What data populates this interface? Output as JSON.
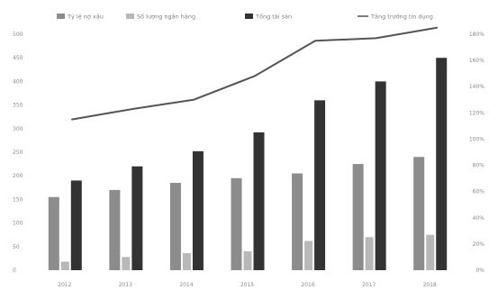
{
  "chart_data": {
    "type": "bar",
    "title": "",
    "xlabel": "",
    "ylabel": "",
    "categories": [
      "2012",
      "2013",
      "2014",
      "2015",
      "2016",
      "2017",
      "2018"
    ],
    "ylim_left": [
      0,
      500
    ],
    "ylim_right": [
      0,
      180
    ],
    "left_ticks": [
      "0",
      "50",
      "100",
      "150",
      "200",
      "250",
      "300",
      "350",
      "400",
      "450",
      "500"
    ],
    "right_ticks": [
      "0%",
      "20%",
      "40%",
      "60%",
      "80%",
      "100%",
      "120%",
      "140%",
      "160%",
      "180%"
    ],
    "series": [
      {
        "name": "Tỷ lệ nợ xấu",
        "type": "bar",
        "axis": "left",
        "color": "#8c8c8c",
        "values": [
          155,
          170,
          185,
          195,
          205,
          225,
          240
        ]
      },
      {
        "name": "Số lượng ngân hàng",
        "type": "bar",
        "axis": "left",
        "color": "#b8b8b8",
        "values": [
          18,
          28,
          36,
          40,
          62,
          70,
          75
        ]
      },
      {
        "name": "Tổng tài sản",
        "type": "bar",
        "axis": "left",
        "color": "#333333",
        "values": [
          190,
          220,
          252,
          292,
          360,
          400,
          450
        ]
      },
      {
        "name": "Tăng trưởng tín dụng",
        "type": "line",
        "axis": "right",
        "color": "#555555",
        "values": [
          115,
          123,
          130,
          148,
          175,
          177,
          185
        ]
      }
    ],
    "grid": false,
    "legend_position": "top"
  }
}
